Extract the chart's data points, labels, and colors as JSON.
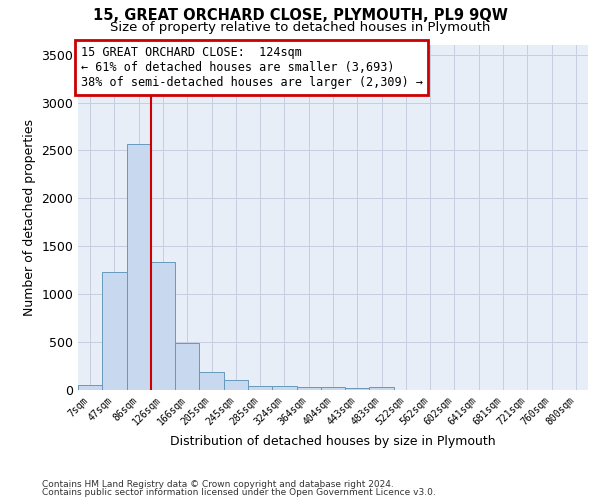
{
  "title": "15, GREAT ORCHARD CLOSE, PLYMOUTH, PL9 9QW",
  "subtitle": "Size of property relative to detached houses in Plymouth",
  "xlabel": "Distribution of detached houses by size in Plymouth",
  "ylabel": "Number of detached properties",
  "bar_color": "#c8d8ee",
  "bar_edge_color": "#6699bb",
  "grid_color": "#c5cfe0",
  "background_color": "#e8eef8",
  "vline_color": "#cc0000",
  "vline_x": 2.5,
  "categories": [
    "7sqm",
    "47sqm",
    "86sqm",
    "126sqm",
    "166sqm",
    "205sqm",
    "245sqm",
    "285sqm",
    "324sqm",
    "364sqm",
    "404sqm",
    "443sqm",
    "483sqm",
    "522sqm",
    "562sqm",
    "602sqm",
    "641sqm",
    "681sqm",
    "721sqm",
    "760sqm",
    "800sqm"
  ],
  "values": [
    55,
    1230,
    2570,
    1340,
    490,
    190,
    100,
    45,
    40,
    35,
    30,
    25,
    30,
    0,
    0,
    0,
    0,
    0,
    0,
    0,
    0
  ],
  "ylim": [
    0,
    3600
  ],
  "yticks": [
    0,
    500,
    1000,
    1500,
    2000,
    2500,
    3000,
    3500
  ],
  "ann_line1": "15 GREAT ORCHARD CLOSE:  124sqm",
  "ann_line2": "← 61% of detached houses are smaller (3,693)",
  "ann_line3": "38% of semi-detached houses are larger (2,309) →",
  "ann_box_color": "#cc0000",
  "footer1": "Contains HM Land Registry data © Crown copyright and database right 2024.",
  "footer2": "Contains public sector information licensed under the Open Government Licence v3.0."
}
